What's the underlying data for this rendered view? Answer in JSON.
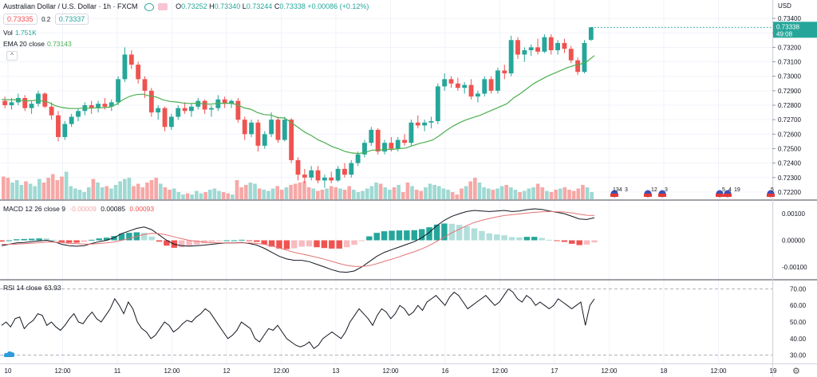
{
  "header": {
    "symbol_title": "Australian Dollar / U.S. Dollar · 1h · FXCM",
    "ohlc": {
      "o_label": "O",
      "o": "0.73252",
      "h_label": "H",
      "h": "0.73340",
      "l_label": "L",
      "l": "0.73244",
      "c_label": "C",
      "c": "0.73338",
      "change": "+0.00086 (+0.12%)"
    },
    "sell_price": "0.73335",
    "spread": "0.2",
    "buy_price": "0.73337"
  },
  "indicators": {
    "vol_label": "Vol",
    "vol_value": "1.751K",
    "ema_label": "EMA 20 close",
    "ema_value": "0.73143",
    "macd_label": "MACD 12 26 close 9",
    "macd_hist": "-0.00009",
    "macd_line": "0.00085",
    "macd_signal": "0.00093",
    "rsi_label": "RSI 14 close",
    "rsi_value": "63.93"
  },
  "price_axis": {
    "currency": "USD",
    "last_price": "0.73338",
    "countdown": "49:08",
    "labels": [
      "0.73400",
      "0.73300",
      "0.73200",
      "0.73100",
      "0.73000",
      "0.72900",
      "0.72800",
      "0.72700",
      "0.72600",
      "0.72500",
      "0.72400",
      "0.72300",
      "0.72200"
    ]
  },
  "macd_axis": {
    "labels": [
      "0.00100",
      "0.00000",
      "-0.00100"
    ]
  },
  "rsi_axis": {
    "labels": [
      "70.00",
      "60.00",
      "50.00",
      "40.00",
      "30.00"
    ]
  },
  "time_axis": {
    "labels": [
      "10",
      "12:00",
      "11",
      "12:00",
      "12",
      "12:00",
      "13",
      "12:00",
      "16",
      "12:00",
      "17",
      "12:00",
      "18",
      "12:00",
      "19"
    ]
  },
  "events": [
    "134",
    "3",
    "12",
    "3",
    "5",
    "4",
    "19",
    "5"
  ],
  "colors": {
    "up": "#26a69a",
    "down": "#ef5350",
    "ema": "#4caf50",
    "macd": "#131722",
    "signal": "#e57373",
    "rsi": "#131722"
  },
  "chart_data": [
    {
      "type": "candlestick",
      "title": "Australian Dollar / U.S. Dollar · 1h · FXCM",
      "ylim": [
        0.7215,
        0.7345
      ],
      "candles": [
        [
          0.7283,
          0.7286,
          0.7278,
          0.728
        ],
        [
          0.728,
          0.7285,
          0.7277,
          0.7282
        ],
        [
          0.7282,
          0.7288,
          0.728,
          0.7285
        ],
        [
          0.7285,
          0.7287,
          0.7276,
          0.7278
        ],
        [
          0.7278,
          0.7283,
          0.7274,
          0.7281
        ],
        [
          0.7281,
          0.729,
          0.7279,
          0.7288
        ],
        [
          0.7288,
          0.7289,
          0.7278,
          0.7279
        ],
        [
          0.7279,
          0.7282,
          0.727,
          0.7273
        ],
        [
          0.7273,
          0.7276,
          0.7255,
          0.7258
        ],
        [
          0.7258,
          0.7269,
          0.7256,
          0.7267
        ],
        [
          0.7267,
          0.7274,
          0.7265,
          0.7272
        ],
        [
          0.7272,
          0.7278,
          0.7269,
          0.7276
        ],
        [
          0.7276,
          0.7282,
          0.7273,
          0.728
        ],
        [
          0.728,
          0.7283,
          0.7274,
          0.7278
        ],
        [
          0.7278,
          0.7283,
          0.7275,
          0.7281
        ],
        [
          0.7281,
          0.7285,
          0.7277,
          0.7279
        ],
        [
          0.7279,
          0.7284,
          0.7276,
          0.7282
        ],
        [
          0.7282,
          0.73,
          0.728,
          0.7298
        ],
        [
          0.7298,
          0.732,
          0.7296,
          0.7315
        ],
        [
          0.7315,
          0.7318,
          0.7305,
          0.7308
        ],
        [
          0.7308,
          0.731,
          0.7295,
          0.7298
        ],
        [
          0.7298,
          0.73,
          0.7285,
          0.729
        ],
        [
          0.729,
          0.7292,
          0.7272,
          0.7275
        ],
        [
          0.7275,
          0.728,
          0.727,
          0.7278
        ],
        [
          0.7278,
          0.7279,
          0.7262,
          0.7265
        ],
        [
          0.7265,
          0.7274,
          0.7263,
          0.7272
        ],
        [
          0.7272,
          0.728,
          0.727,
          0.7278
        ],
        [
          0.7278,
          0.7282,
          0.7274,
          0.7276
        ],
        [
          0.7276,
          0.7281,
          0.7272,
          0.7279
        ],
        [
          0.7279,
          0.7285,
          0.7277,
          0.7283
        ],
        [
          0.7283,
          0.7284,
          0.7274,
          0.7277
        ],
        [
          0.7277,
          0.728,
          0.7272,
          0.7278
        ],
        [
          0.7278,
          0.7287,
          0.7276,
          0.7284
        ],
        [
          0.7284,
          0.7286,
          0.7278,
          0.7281
        ],
        [
          0.7281,
          0.7284,
          0.7278,
          0.7283
        ],
        [
          0.7283,
          0.7285,
          0.7268,
          0.727
        ],
        [
          0.727,
          0.7272,
          0.7256,
          0.726
        ],
        [
          0.726,
          0.727,
          0.7258,
          0.7268
        ],
        [
          0.7268,
          0.727,
          0.7248,
          0.7252
        ],
        [
          0.7252,
          0.7262,
          0.725,
          0.726
        ],
        [
          0.726,
          0.7275,
          0.7258,
          0.727
        ],
        [
          0.727,
          0.7272,
          0.7254,
          0.7256
        ],
        [
          0.7256,
          0.7272,
          0.7255,
          0.727
        ],
        [
          0.727,
          0.7271,
          0.724,
          0.7242
        ],
        [
          0.7242,
          0.7244,
          0.7228,
          0.7232
        ],
        [
          0.7232,
          0.7236,
          0.7226,
          0.723
        ],
        [
          0.723,
          0.7238,
          0.7228,
          0.7235
        ],
        [
          0.7235,
          0.7238,
          0.7226,
          0.7228
        ],
        [
          0.7228,
          0.7232,
          0.7223,
          0.723
        ],
        [
          0.723,
          0.7234,
          0.7226,
          0.7228
        ],
        [
          0.7228,
          0.7238,
          0.7227,
          0.7236
        ],
        [
          0.7236,
          0.724,
          0.723,
          0.7232
        ],
        [
          0.7232,
          0.7242,
          0.723,
          0.724
        ],
        [
          0.724,
          0.7248,
          0.7238,
          0.7246
        ],
        [
          0.7246,
          0.7256,
          0.7244,
          0.7254
        ],
        [
          0.7254,
          0.7265,
          0.7252,
          0.7263
        ],
        [
          0.7263,
          0.7264,
          0.7246,
          0.7248
        ],
        [
          0.7248,
          0.7256,
          0.7246,
          0.7254
        ],
        [
          0.7254,
          0.7258,
          0.7248,
          0.725
        ],
        [
          0.725,
          0.7258,
          0.7248,
          0.7256
        ],
        [
          0.7256,
          0.726,
          0.7252,
          0.7254
        ],
        [
          0.7254,
          0.727,
          0.7252,
          0.7268
        ],
        [
          0.7268,
          0.7273,
          0.7264,
          0.7266
        ],
        [
          0.7266,
          0.727,
          0.7262,
          0.7268
        ],
        [
          0.7268,
          0.7272,
          0.7264,
          0.7269
        ],
        [
          0.7269,
          0.7295,
          0.7267,
          0.7293
        ],
        [
          0.7293,
          0.7302,
          0.729,
          0.7298
        ],
        [
          0.7298,
          0.73,
          0.7292,
          0.7295
        ],
        [
          0.7295,
          0.7299,
          0.729,
          0.7292
        ],
        [
          0.7292,
          0.7296,
          0.7288,
          0.7294
        ],
        [
          0.7294,
          0.7298,
          0.7284,
          0.7286
        ],
        [
          0.7286,
          0.729,
          0.7282,
          0.7288
        ],
        [
          0.7288,
          0.73,
          0.7286,
          0.7298
        ],
        [
          0.7298,
          0.73,
          0.7288,
          0.729
        ],
        [
          0.729,
          0.7306,
          0.7288,
          0.7304
        ],
        [
          0.7304,
          0.7308,
          0.7298,
          0.7302
        ],
        [
          0.7302,
          0.7328,
          0.73,
          0.7325
        ],
        [
          0.7325,
          0.7327,
          0.7312,
          0.7315
        ],
        [
          0.7315,
          0.732,
          0.731,
          0.7318
        ],
        [
          0.7318,
          0.7322,
          0.7314,
          0.732
        ],
        [
          0.732,
          0.7326,
          0.7315,
          0.7317
        ],
        [
          0.7317,
          0.7329,
          0.7316,
          0.7327
        ],
        [
          0.7327,
          0.7329,
          0.7315,
          0.7318
        ],
        [
          0.7318,
          0.7325,
          0.7315,
          0.7323
        ],
        [
          0.7323,
          0.7326,
          0.7316,
          0.7319
        ],
        [
          0.7319,
          0.7321,
          0.7309,
          0.7311
        ],
        [
          0.7311,
          0.7313,
          0.7301,
          0.7303
        ],
        [
          0.7303,
          0.7325,
          0.7302,
          0.7323
        ],
        [
          0.73252,
          0.7334,
          0.73244,
          0.73338
        ]
      ],
      "ema": [
        0.7284,
        0.72838,
        0.72838,
        0.72832,
        0.7283,
        0.72834,
        0.72829,
        0.72819,
        0.72796,
        0.72784,
        0.72778,
        0.72777,
        0.72779,
        0.72779,
        0.72782,
        0.72783,
        0.72786,
        0.72805,
        0.72838,
        0.72861,
        0.72873,
        0.72876,
        0.72864,
        0.72856,
        0.72837,
        0.72826,
        0.72822,
        0.72815,
        0.72812,
        0.72814,
        0.7281,
        0.72807,
        0.72813,
        0.72813,
        0.72814,
        0.72804,
        0.72781,
        0.72772,
        0.72749,
        0.72735,
        0.72732,
        0.72714,
        0.72712,
        0.7268,
        0.72647,
        0.72614,
        0.7259,
        0.7256,
        0.7254,
        0.72515,
        0.725,
        0.7248,
        0.7247,
        0.72466,
        0.72474,
        0.7249,
        0.7249,
        0.72495,
        0.72495,
        0.725,
        0.72504,
        0.7252,
        0.72535,
        0.72546,
        0.7256,
        0.7259,
        0.72625,
        0.72655,
        0.7268,
        0.727,
        0.72715,
        0.7273,
        0.7275,
        0.7277,
        0.7279,
        0.7281,
        0.7285,
        0.7288,
        0.72915,
        0.7295,
        0.72975,
        0.73,
        0.7302,
        0.7304,
        0.7306,
        0.73075,
        0.73085,
        0.73105,
        0.73143
      ],
      "volume": [
        1.9,
        1.8,
        1.4,
        1.6,
        1.2,
        1.5,
        1.3,
        1.1,
        1.7,
        1.4,
        1.8,
        2.1,
        1.6,
        1.9,
        2.3,
        1.1,
        0.9,
        0.8,
        0.6,
        1.0,
        1.7,
        1.4,
        1.0,
        1.1,
        0.9,
        1.2,
        1.5,
        1.7,
        1.8,
        1.1,
        1.3,
        1.0,
        1.4,
        1.6,
        1.8,
        1.3,
        1.0,
        0.8,
        0.9,
        0.6,
        0.4,
        0.5,
        0.4,
        0.7,
        0.5,
        0.6,
        0.8,
        0.9,
        0.7,
        0.6,
        0.5,
        0.4,
        1.6,
        1.0,
        1.2,
        1.4,
        1.3,
        0.9,
        0.8,
        0.7,
        0.9,
        1.1,
        0.8,
        1.0,
        1.2,
        1.3,
        1.4,
        1.5,
        1.0,
        0.9,
        0.7,
        0.8,
        0.9,
        1.1,
        1.0,
        0.9,
        0.8,
        1.1,
        0.8,
        0.6,
        0.7,
        0.9,
        1.1,
        1.4,
        1.3,
        1.0,
        0.8,
        1.0,
        1.2,
        0.6,
        1.4,
        1.1,
        0.8,
        0.7,
        1.0,
        1.3,
        1.2,
        1.1,
        0.9,
        0.8,
        0.6,
        0.4,
        0.9,
        1.1,
        1.5,
        1.8,
        1.4,
        1.0,
        0.9,
        0.8,
        0.9,
        1.1,
        1.2,
        1.0,
        0.8,
        0.6,
        0.7,
        0.9,
        1.0,
        1.3,
        1.0,
        0.7,
        0.6,
        0.8,
        0.9,
        1.0,
        0.8,
        0.7,
        0.9,
        1.2,
        1.0,
        0.6
      ]
    },
    {
      "type": "macd",
      "title": "MACD 12 26 close 9",
      "ylim": [
        -0.00145,
        0.00148
      ],
      "macd": [
        -0.0002,
        -0.00015,
        -0.0001,
        -8e-05,
        -5e-05,
        -2e-05,
        0.0,
        -5e-05,
        -0.00015,
        -0.0002,
        -0.00022,
        -0.0002,
        -0.00012,
        -5e-05,
        0.0,
        0.0001,
        0.00025,
        0.00035,
        0.00045,
        0.0005,
        0.0004,
        0.0002,
        0.0,
        -0.00015,
        -0.0002,
        -0.00022,
        -0.0002,
        -0.00018,
        -0.00015,
        -0.00012,
        -0.0001,
        -0.0001,
        -8e-05,
        -0.00012,
        -0.00018,
        -0.0003,
        -0.00045,
        -0.0006,
        -0.0007,
        -0.00075,
        -0.00075,
        -0.0008,
        -0.0009,
        -0.001,
        -0.0011,
        -0.00118,
        -0.0012,
        -0.00115,
        -0.001,
        -0.0008,
        -0.0006,
        -0.00045,
        -0.00035,
        -0.00025,
        -0.00015,
        -5e-05,
        0.0001,
        0.0003,
        0.00055,
        0.00075,
        0.0009,
        0.001,
        0.00108,
        0.00112,
        0.0011,
        0.00108,
        0.0011,
        0.00112,
        0.00108,
        0.0011,
        0.00115,
        0.00118,
        0.00116,
        0.0011,
        0.00105,
        0.001,
        0.0009,
        0.0008,
        0.00078,
        0.00085
      ],
      "signal": [
        -0.00015,
        -0.00015,
        -0.00014,
        -0.00013,
        -0.00011,
        -9e-05,
        -7e-05,
        -7e-05,
        -8e-05,
        -0.00011,
        -0.00013,
        -0.00014,
        -0.00014,
        -0.00012,
        -0.0001,
        -6e-05,
        0.0,
        7e-05,
        0.00015,
        0.00022,
        0.00026,
        0.00025,
        0.0002,
        0.00013,
        6e-05,
        0.0,
        -4e-05,
        -7e-05,
        -9e-05,
        -0.0001,
        -0.0001,
        -0.0001,
        -0.0001,
        -0.0001,
        -0.00012,
        -0.00015,
        -0.00021,
        -0.00029,
        -0.00037,
        -0.00045,
        -0.00051,
        -0.00057,
        -0.00064,
        -0.00071,
        -0.00079,
        -0.00087,
        -0.00094,
        -0.00098,
        -0.00098,
        -0.00095,
        -0.00088,
        -0.00079,
        -0.00071,
        -0.00062,
        -0.00052,
        -0.00043,
        -0.00032,
        -0.00019,
        -4e-05,
        0.00012,
        0.00028,
        0.00042,
        0.00055,
        0.00067,
        0.00075,
        0.00082,
        0.00088,
        0.00093,
        0.00096,
        0.00099,
        0.00102,
        0.00105,
        0.00107,
        0.00108,
        0.00107,
        0.00106,
        0.00103,
        0.00098,
        0.00094,
        0.00093
      ],
      "histogram_last": -9e-05
    },
    {
      "type": "line",
      "title": "RSI 14 close",
      "ylim": [
        25,
        75
      ],
      "levels": [
        70,
        30
      ],
      "values": [
        48,
        50,
        47,
        52,
        53,
        46,
        49,
        51,
        55,
        54,
        48,
        50,
        47,
        45,
        48,
        52,
        55,
        50,
        49,
        53,
        56,
        52,
        50,
        54,
        58,
        64,
        60,
        55,
        62,
        58,
        50,
        46,
        44,
        40,
        42,
        46,
        50,
        48,
        44,
        46,
        49,
        51,
        50,
        53,
        55,
        58,
        56,
        52,
        48,
        44,
        40,
        42,
        45,
        50,
        48,
        46,
        40,
        38,
        42,
        46,
        45,
        48,
        44,
        40,
        38,
        36,
        35,
        36,
        38,
        34,
        36,
        40,
        42,
        44,
        42,
        40,
        44,
        50,
        54,
        58,
        55,
        52,
        48,
        54,
        58,
        56,
        52,
        55,
        60,
        58,
        54,
        56,
        60,
        57,
        62,
        64,
        66,
        63,
        60,
        65,
        68,
        66,
        62,
        58,
        60,
        62,
        64,
        66,
        63,
        60,
        62,
        66,
        70,
        68,
        64,
        62,
        66,
        64,
        60,
        62,
        60,
        58,
        60,
        64,
        62,
        60,
        58,
        60,
        62,
        48,
        60,
        63.93
      ]
    }
  ]
}
